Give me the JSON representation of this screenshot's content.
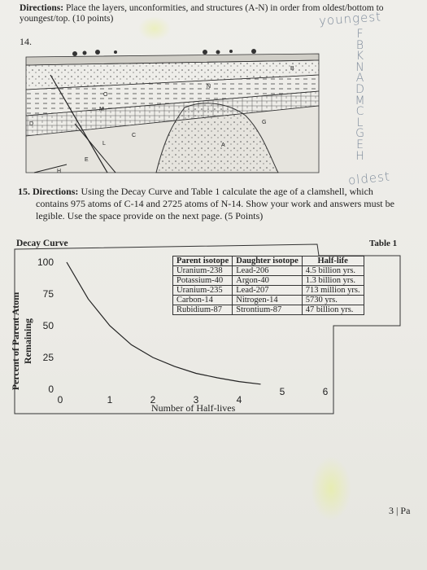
{
  "header": {
    "directions_label": "Directions:",
    "directions_text": "Place the layers, unconformities, and structures (A-N) in order from oldest/bottom to youngest/top. (10 points)",
    "handwritten_youngest": "youngest",
    "handwritten_oldest": "oldest"
  },
  "question14": {
    "number": "14.",
    "layer_labels": [
      "B",
      "N",
      "O",
      "M",
      "D",
      "C",
      "L",
      "E",
      "H",
      "A",
      "G"
    ],
    "handwritten_order": [
      "F",
      "B",
      "K",
      "N",
      "A",
      "D",
      "M",
      "C",
      "L",
      "G",
      "E",
      "H"
    ]
  },
  "question15": {
    "number": "15.",
    "directions_label": "Directions:",
    "text_line1": "Using the Decay Curve and Table 1 calculate the age of a clamshell, which",
    "text_line2": "contains 975 atoms of C-14 and 2725 atoms of N-14. Show your work and answers must be",
    "text_line3": "legible. Use the space provide on the next page. (5 Points)"
  },
  "decay_curve": {
    "title": "Decay Curve",
    "y_axis_label": "Percent of Parent Atom Remaining",
    "x_axis_label": "Number of Half-lives",
    "y_ticks": [
      "100",
      "75",
      "50",
      "25",
      "0"
    ],
    "x_ticks": [
      "0",
      "1",
      "2",
      "3",
      "4",
      "5",
      "6"
    ]
  },
  "table1": {
    "title": "Table 1",
    "headers": [
      "Parent isotope",
      "Daughter isotope",
      "Half-life"
    ],
    "rows": [
      [
        "Uranium-238",
        "Lead-206",
        "4.5 billion yrs."
      ],
      [
        "Potassium-40",
        "Argon-40",
        "1.3 billion yrs."
      ],
      [
        "Uranium-235",
        "Lead-207",
        "713 million yrs."
      ],
      [
        "Carbon-14",
        "Nitrogen-14",
        "5730 yrs."
      ],
      [
        "Rubidium-87",
        "Strontium-87",
        "47 billion yrs."
      ]
    ]
  },
  "footer": {
    "page": "3 | Pa"
  },
  "chart_data": {
    "type": "line",
    "title": "Decay Curve",
    "xlabel": "Number of Half-lives",
    "ylabel": "Percent of Parent Atom Remaining",
    "x": [
      0,
      0.5,
      1,
      1.5,
      2,
      2.5,
      3,
      3.5,
      4,
      4.5
    ],
    "series": [
      {
        "values": [
          100,
          71,
          50,
          35,
          25,
          18,
          12.5,
          9,
          6,
          4
        ]
      }
    ],
    "xlim": [
      0,
      6
    ],
    "ylim": [
      0,
      100
    ],
    "grid": false
  }
}
